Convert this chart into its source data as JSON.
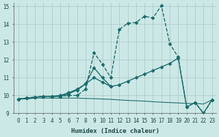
{
  "xlabel": "Humidex (Indice chaleur)",
  "xlim": [
    -0.5,
    23.5
  ],
  "ylim": [
    9,
    15.2
  ],
  "yticks": [
    9,
    10,
    11,
    12,
    13,
    14,
    15
  ],
  "xticks": [
    0,
    1,
    2,
    3,
    4,
    5,
    6,
    7,
    8,
    9,
    10,
    11,
    12,
    13,
    14,
    15,
    16,
    17,
    18,
    19,
    20,
    21,
    22,
    23
  ],
  "bg_color": "#cce8e6",
  "grid_color": "#b0cfcd",
  "line_color": "#1a6b6b",
  "lines": [
    {
      "x": [
        0,
        1,
        2,
        3,
        4,
        5,
        6,
        7,
        8,
        9,
        10,
        11,
        12,
        13,
        14,
        15,
        16,
        17,
        18,
        19,
        20,
        21,
        22,
        23
      ],
      "y": [
        9.8,
        9.85,
        9.9,
        9.95,
        9.95,
        9.95,
        10.0,
        10.0,
        10.35,
        12.4,
        11.75,
        11.0,
        13.7,
        14.05,
        14.1,
        14.45,
        14.35,
        15.05,
        12.9,
        12.15,
        9.35,
        9.6,
        9.0,
        9.75
      ],
      "linestyle": "--",
      "marker": "D",
      "markersize": 2.5,
      "linewidth": 1.0
    },
    {
      "x": [
        0,
        1,
        2,
        3,
        4,
        5,
        6,
        7,
        8,
        9,
        10,
        11,
        12,
        13,
        14,
        15,
        16,
        17,
        18,
        19,
        20,
        21,
        22,
        23
      ],
      "y": [
        9.8,
        9.85,
        9.9,
        9.95,
        9.95,
        10.0,
        10.15,
        10.35,
        10.65,
        11.55,
        11.0,
        10.5,
        10.6,
        10.8,
        11.0,
        11.2,
        11.4,
        11.6,
        11.8,
        12.1,
        9.35,
        9.6,
        9.0,
        9.75
      ],
      "linestyle": "-",
      "marker": "D",
      "markersize": 2.5,
      "linewidth": 1.0
    },
    {
      "x": [
        0,
        1,
        2,
        3,
        4,
        5,
        6,
        7,
        8,
        9,
        10,
        11,
        12,
        13,
        14,
        15,
        16,
        17,
        18,
        19,
        20,
        21,
        22,
        23
      ],
      "y": [
        9.8,
        9.8,
        9.85,
        9.85,
        9.85,
        9.85,
        9.85,
        9.85,
        9.83,
        9.82,
        9.8,
        9.78,
        9.75,
        9.72,
        9.7,
        9.68,
        9.65,
        9.62,
        9.6,
        9.58,
        9.55,
        9.55,
        9.52,
        9.75
      ],
      "linestyle": "-",
      "marker": null,
      "markersize": 0,
      "linewidth": 0.8
    },
    {
      "x": [
        0,
        1,
        2,
        3,
        4,
        5,
        6,
        7,
        8,
        9,
        10,
        11
      ],
      "y": [
        9.8,
        9.85,
        9.9,
        9.95,
        9.95,
        9.95,
        10.1,
        10.3,
        10.65,
        11.0,
        10.75,
        10.5
      ],
      "linestyle": "-",
      "marker": "D",
      "markersize": 2.5,
      "linewidth": 1.0
    }
  ]
}
